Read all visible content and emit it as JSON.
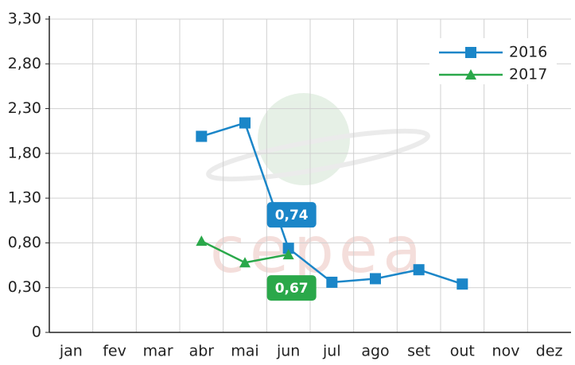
{
  "chart_data": {
    "type": "line",
    "watermark": "cepea",
    "categories": [
      "jan",
      "fev",
      "mar",
      "abr",
      "mai",
      "jun",
      "jul",
      "ago",
      "set",
      "out",
      "nov",
      "dez"
    ],
    "series": [
      {
        "name": "2016",
        "color": "#1b86c8",
        "marker": "square",
        "values": [
          null,
          null,
          null,
          1.99,
          2.14,
          0.74,
          0.36,
          0.4,
          0.5,
          0.34,
          null,
          null
        ],
        "value_labels": [
          null,
          null,
          null,
          null,
          null,
          "0,74",
          null,
          null,
          null,
          null,
          null,
          null
        ]
      },
      {
        "name": "2017",
        "color": "#2aa84a",
        "marker": "triangle",
        "values": [
          null,
          null,
          null,
          0.82,
          0.58,
          0.67,
          null,
          null,
          null,
          null,
          null,
          null
        ],
        "value_labels": [
          null,
          null,
          null,
          null,
          null,
          "0,67",
          null,
          null,
          null,
          null,
          null,
          null
        ]
      }
    ],
    "ylim": [
      0,
      3.3
    ],
    "yticks": [
      0,
      {
        "value": 0.3,
        "label": "0,30"
      },
      {
        "value": 0.8,
        "label": "0,80"
      },
      {
        "value": 1.3,
        "label": "1,30"
      },
      {
        "value": 1.8,
        "label": "1,80"
      },
      {
        "value": 2.3,
        "label": "2,30"
      },
      {
        "value": 2.8,
        "label": "2,80"
      },
      {
        "value": 3.3,
        "label": "3,30"
      }
    ],
    "grid": true,
    "legend": "top-right"
  }
}
